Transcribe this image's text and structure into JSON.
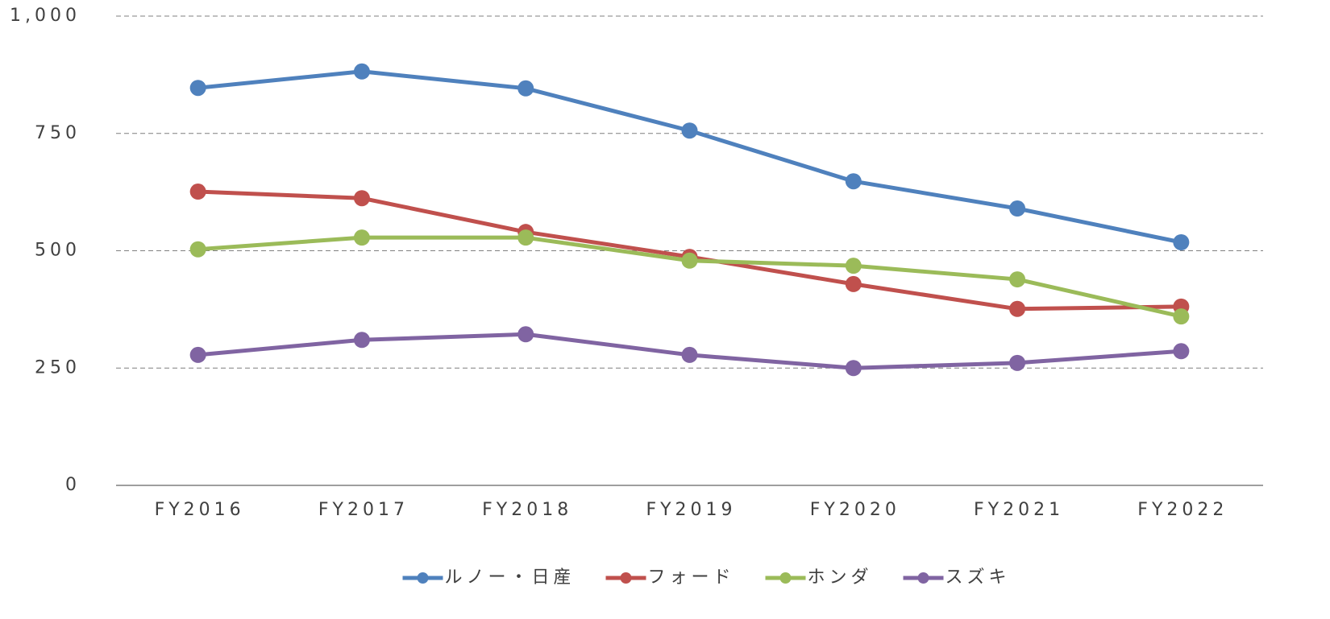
{
  "chart_data": {
    "type": "line",
    "categories": [
      "FY2016",
      "FY2017",
      "FY2018",
      "FY2019",
      "FY2020",
      "FY2021",
      "FY2022"
    ],
    "series": [
      {
        "name": "ルノー・日産",
        "color": "#4f81bd",
        "values": [
          847,
          882,
          846,
          756,
          648,
          590,
          518
        ]
      },
      {
        "name": "フォード",
        "color": "#c0504d",
        "values": [
          626,
          612,
          540,
          487,
          429,
          376,
          381
        ]
      },
      {
        "name": "ホンダ",
        "color": "#9bbb59",
        "values": [
          503,
          528,
          528,
          479,
          468,
          439,
          360
        ]
      },
      {
        "name": "スズキ",
        "color": "#8064a2",
        "values": [
          278,
          310,
          322,
          278,
          250,
          261,
          286
        ]
      }
    ],
    "ylim": [
      0,
      1000
    ],
    "yticks": [
      0,
      250,
      500,
      750,
      {
        "value": 1000,
        "label": "1,000"
      }
    ],
    "grid": true,
    "legend": "bottom"
  }
}
